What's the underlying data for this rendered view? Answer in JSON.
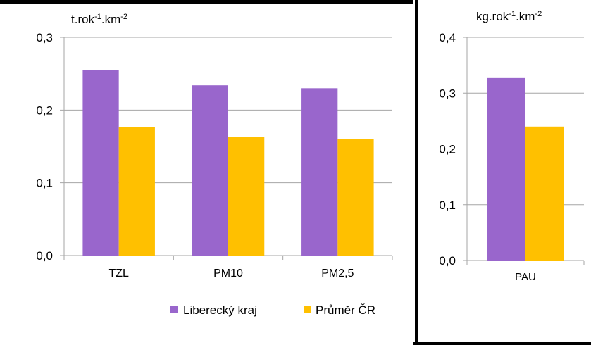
{
  "colors": {
    "series1": "#9966CC",
    "series2": "#FFC000",
    "gridline": "#A6A6A6",
    "frame": "#000000"
  },
  "legend": {
    "items": [
      {
        "label": "Liberecký kraj",
        "color": "#9966CC"
      },
      {
        "label": "Průměr ČR",
        "color": "#FFC000"
      }
    ]
  },
  "chart_data": [
    {
      "type": "bar",
      "unit_base": "t.rok",
      "unit_exp1": "-1",
      "unit_mid": ".km",
      "unit_exp2": "-2",
      "categories": [
        "TZL",
        "PM10",
        "PM2,5"
      ],
      "series": [
        {
          "name": "Liberecký kraj",
          "values": [
            0.255,
            0.234,
            0.23
          ]
        },
        {
          "name": "Průměr ČR",
          "values": [
            0.177,
            0.163,
            0.16
          ]
        }
      ],
      "ylim": [
        0,
        0.3
      ],
      "yticks": [
        "0,0",
        "0,1",
        "0,2",
        "0,3"
      ],
      "grid": true
    },
    {
      "type": "bar",
      "unit_base": "kg.rok",
      "unit_exp1": "-1",
      "unit_mid": ".km",
      "unit_exp2": "-2",
      "categories": [
        "PAU"
      ],
      "series": [
        {
          "name": "Liberecký kraj",
          "values": [
            0.327
          ]
        },
        {
          "name": "Průměr ČR",
          "values": [
            0.24
          ]
        }
      ],
      "ylim": [
        0,
        0.4
      ],
      "yticks": [
        "0,0",
        "0,1",
        "0,2",
        "0,3",
        "0,4"
      ],
      "grid": true
    }
  ]
}
